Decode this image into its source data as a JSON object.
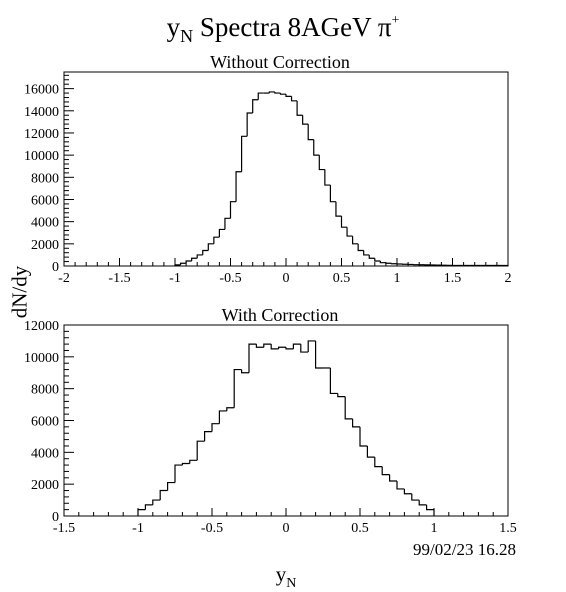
{
  "title": {
    "base": "y",
    "sub": "N",
    "rest": " Spectra 8AGeV  π",
    "sup": "+"
  },
  "timestamp": "99/02/23   16.28",
  "ylabel": "dN/dy",
  "xlabel": {
    "base": "y",
    "sub": "N"
  },
  "chart_data": [
    {
      "type": "bar",
      "title": "Without Correction",
      "xlim": [
        -2,
        2
      ],
      "ylim": [
        0,
        17500
      ],
      "xticks": [
        "-2",
        "-1.5",
        "-1",
        "-0.5",
        "0",
        "0.5",
        "1",
        "1.5",
        "2"
      ],
      "yticks": [
        "0",
        "2000",
        "4000",
        "6000",
        "8000",
        "10000",
        "12000",
        "14000",
        "16000"
      ],
      "bin_edges": [
        -1.0,
        -0.95,
        -0.9,
        -0.85,
        -0.8,
        -0.75,
        -0.7,
        -0.65,
        -0.6,
        -0.55,
        -0.5,
        -0.45,
        -0.4,
        -0.35,
        -0.3,
        -0.25,
        -0.2,
        -0.15,
        -0.1,
        -0.05,
        0.0,
        0.05,
        0.1,
        0.15,
        0.2,
        0.25,
        0.3,
        0.35,
        0.4,
        0.45,
        0.5,
        0.55,
        0.6,
        0.65,
        0.7,
        0.75,
        0.8,
        0.85,
        0.9,
        0.95,
        1.0,
        1.05,
        1.1,
        1.15,
        1.2,
        1.25,
        1.3,
        1.35,
        1.4,
        1.45,
        1.5,
        1.55,
        1.6,
        1.65,
        1.7,
        1.75,
        1.8,
        1.85,
        1.9,
        1.95,
        2.0
      ],
      "values": [
        100,
        250,
        450,
        700,
        1000,
        1400,
        2000,
        2600,
        3300,
        4300,
        5800,
        8500,
        11700,
        13800,
        15000,
        15600,
        15600,
        15700,
        15600,
        15500,
        15300,
        14900,
        13600,
        12800,
        11400,
        10000,
        8700,
        7300,
        5800,
        4500,
        3500,
        2700,
        2000,
        1400,
        1000,
        700,
        450,
        300,
        250,
        200,
        180,
        160,
        140,
        120,
        110,
        100,
        90,
        80,
        70,
        60,
        50,
        50,
        50,
        50,
        50,
        50,
        50,
        50,
        50,
        50
      ]
    },
    {
      "type": "bar",
      "title": "With Correction",
      "xlim": [
        -1.5,
        1.5
      ],
      "ylim": [
        0,
        12000
      ],
      "xticks": [
        "-1.5",
        "-1",
        "-0.5",
        "0",
        "0.5",
        "1",
        "1.5"
      ],
      "yticks": [
        "0",
        "2000",
        "4000",
        "6000",
        "8000",
        "10000",
        "12000"
      ],
      "bin_edges": [
        -1.0,
        -0.95,
        -0.9,
        -0.85,
        -0.8,
        -0.75,
        -0.7,
        -0.65,
        -0.6,
        -0.55,
        -0.5,
        -0.45,
        -0.4,
        -0.35,
        -0.3,
        -0.25,
        -0.2,
        -0.15,
        -0.1,
        -0.05,
        0.0,
        0.05,
        0.1,
        0.15,
        0.2,
        0.25,
        0.3,
        0.35,
        0.4,
        0.45,
        0.5,
        0.55,
        0.6,
        0.65,
        0.7,
        0.75,
        0.8,
        0.85,
        0.9,
        0.95,
        1.0
      ],
      "values": [
        400,
        700,
        1000,
        1600,
        2100,
        3200,
        3300,
        3500,
        4700,
        5300,
        5800,
        6600,
        6800,
        9200,
        9000,
        10800,
        10600,
        10800,
        10500,
        10600,
        10500,
        10800,
        10300,
        11000,
        9300,
        9300,
        7700,
        7500,
        6100,
        5600,
        4400,
        3700,
        3100,
        2600,
        2200,
        1700,
        1400,
        1000,
        700,
        400
      ]
    }
  ]
}
